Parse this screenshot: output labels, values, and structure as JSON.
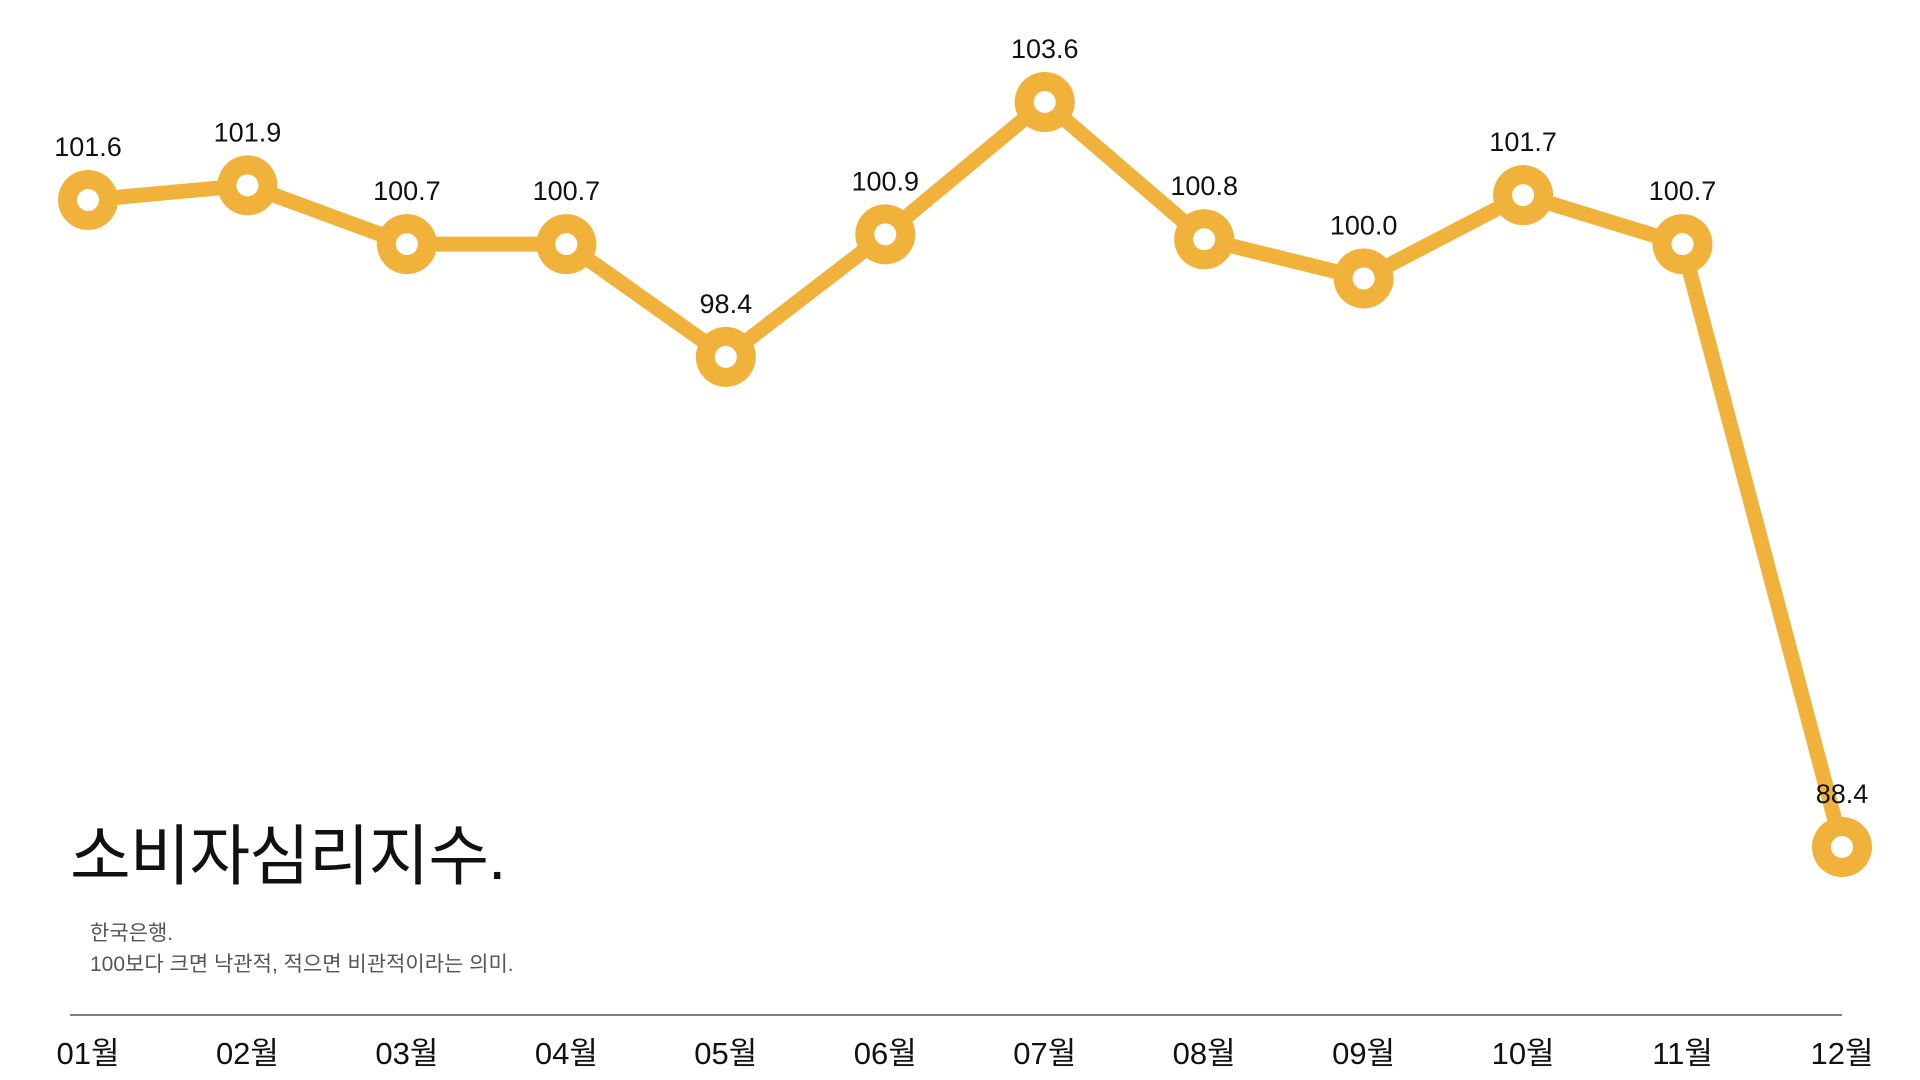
{
  "colors": {
    "line": "#F0B23B",
    "marker_center": "#ffffff",
    "axis": "#555555"
  },
  "chart_data": {
    "type": "line",
    "title": "소비자심리지수.",
    "subtitle_lines": [
      "한국은행.",
      "100보다 크면 낙관적, 적으면 비관적이라는 의미."
    ],
    "categories": [
      "01월",
      "02월",
      "03월",
      "04월",
      "05월",
      "06월",
      "07월",
      "08월",
      "09월",
      "10월",
      "11월",
      "12월"
    ],
    "series": [
      {
        "values": [
          101.6,
          101.9,
          100.7,
          100.7,
          98.4,
          100.9,
          103.6,
          100.8,
          100.0,
          101.7,
          100.7,
          88.4
        ]
      }
    ],
    "data_labels": [
      "101.6",
      "101.9",
      "100.7",
      "100.7",
      "98.4",
      "100.9",
      "103.6",
      "100.8",
      "100.0",
      "101.7",
      "100.7",
      "88.4"
    ],
    "ylim": [
      88.4,
      103.6
    ],
    "xlabel": "",
    "ylabel": "",
    "grid": false,
    "legend": "none"
  }
}
